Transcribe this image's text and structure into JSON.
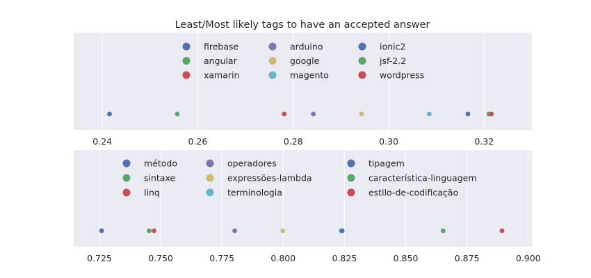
{
  "chart_data": [
    {
      "type": "scatter",
      "title": "Least/Most likely tags to have an accepted answer",
      "xlim": [
        0.234,
        0.33
      ],
      "xticks": [
        "0.24",
        "0.26",
        "0.28",
        "0.30",
        "0.32"
      ],
      "xtick_values": [
        0.24,
        0.26,
        0.28,
        0.3,
        0.32
      ],
      "grid": true,
      "legend_position": "top-center",
      "points": [
        {
          "name": "firebase",
          "x": 0.2415,
          "color": "#4c72b0"
        },
        {
          "name": "angular",
          "x": 0.2557,
          "color": "#55a868"
        },
        {
          "name": "xamarin",
          "x": 0.2781,
          "color": "#c44e52"
        },
        {
          "name": "arduino",
          "x": 0.2842,
          "color": "#8172b2"
        },
        {
          "name": "google",
          "x": 0.2943,
          "color": "#ccb974"
        },
        {
          "name": "magento",
          "x": 0.3085,
          "color": "#64b5cd"
        },
        {
          "name": "ionic2",
          "x": 0.3166,
          "color": "#4c72b0"
        },
        {
          "name": "jsf-2.2",
          "x": 0.321,
          "color": "#55a868"
        },
        {
          "name": "wordpress",
          "x": 0.3215,
          "color": "#c44e52"
        }
      ]
    },
    {
      "type": "scatter",
      "title": "",
      "xlim": [
        0.7145,
        0.9015
      ],
      "xticks": [
        "0.725",
        "0.750",
        "0.775",
        "0.800",
        "0.825",
        "0.850",
        "0.875",
        "0.900"
      ],
      "xtick_values": [
        0.725,
        0.75,
        0.775,
        0.8,
        0.825,
        0.85,
        0.875,
        0.9
      ],
      "grid": true,
      "legend_position": "top-center",
      "points": [
        {
          "name": "método",
          "x": 0.7259,
          "color": "#4c72b0"
        },
        {
          "name": "sintaxe",
          "x": 0.7453,
          "color": "#55a868"
        },
        {
          "name": "linq",
          "x": 0.7473,
          "color": "#c44e52"
        },
        {
          "name": "operadores",
          "x": 0.7802,
          "color": "#8172b2"
        },
        {
          "name": "expressões-lambda",
          "x": 0.7998,
          "color": "#ccb974"
        },
        {
          "name": "terminologia",
          "x": 0.8236,
          "color": "#64b5cd"
        },
        {
          "name": "tipagem",
          "x": 0.8241,
          "color": "#4c72b0"
        },
        {
          "name": "característica-linguagem",
          "x": 0.8653,
          "color": "#55a868"
        },
        {
          "name": "estilo-de-codificação",
          "x": 0.8893,
          "color": "#c44e52"
        }
      ]
    }
  ]
}
